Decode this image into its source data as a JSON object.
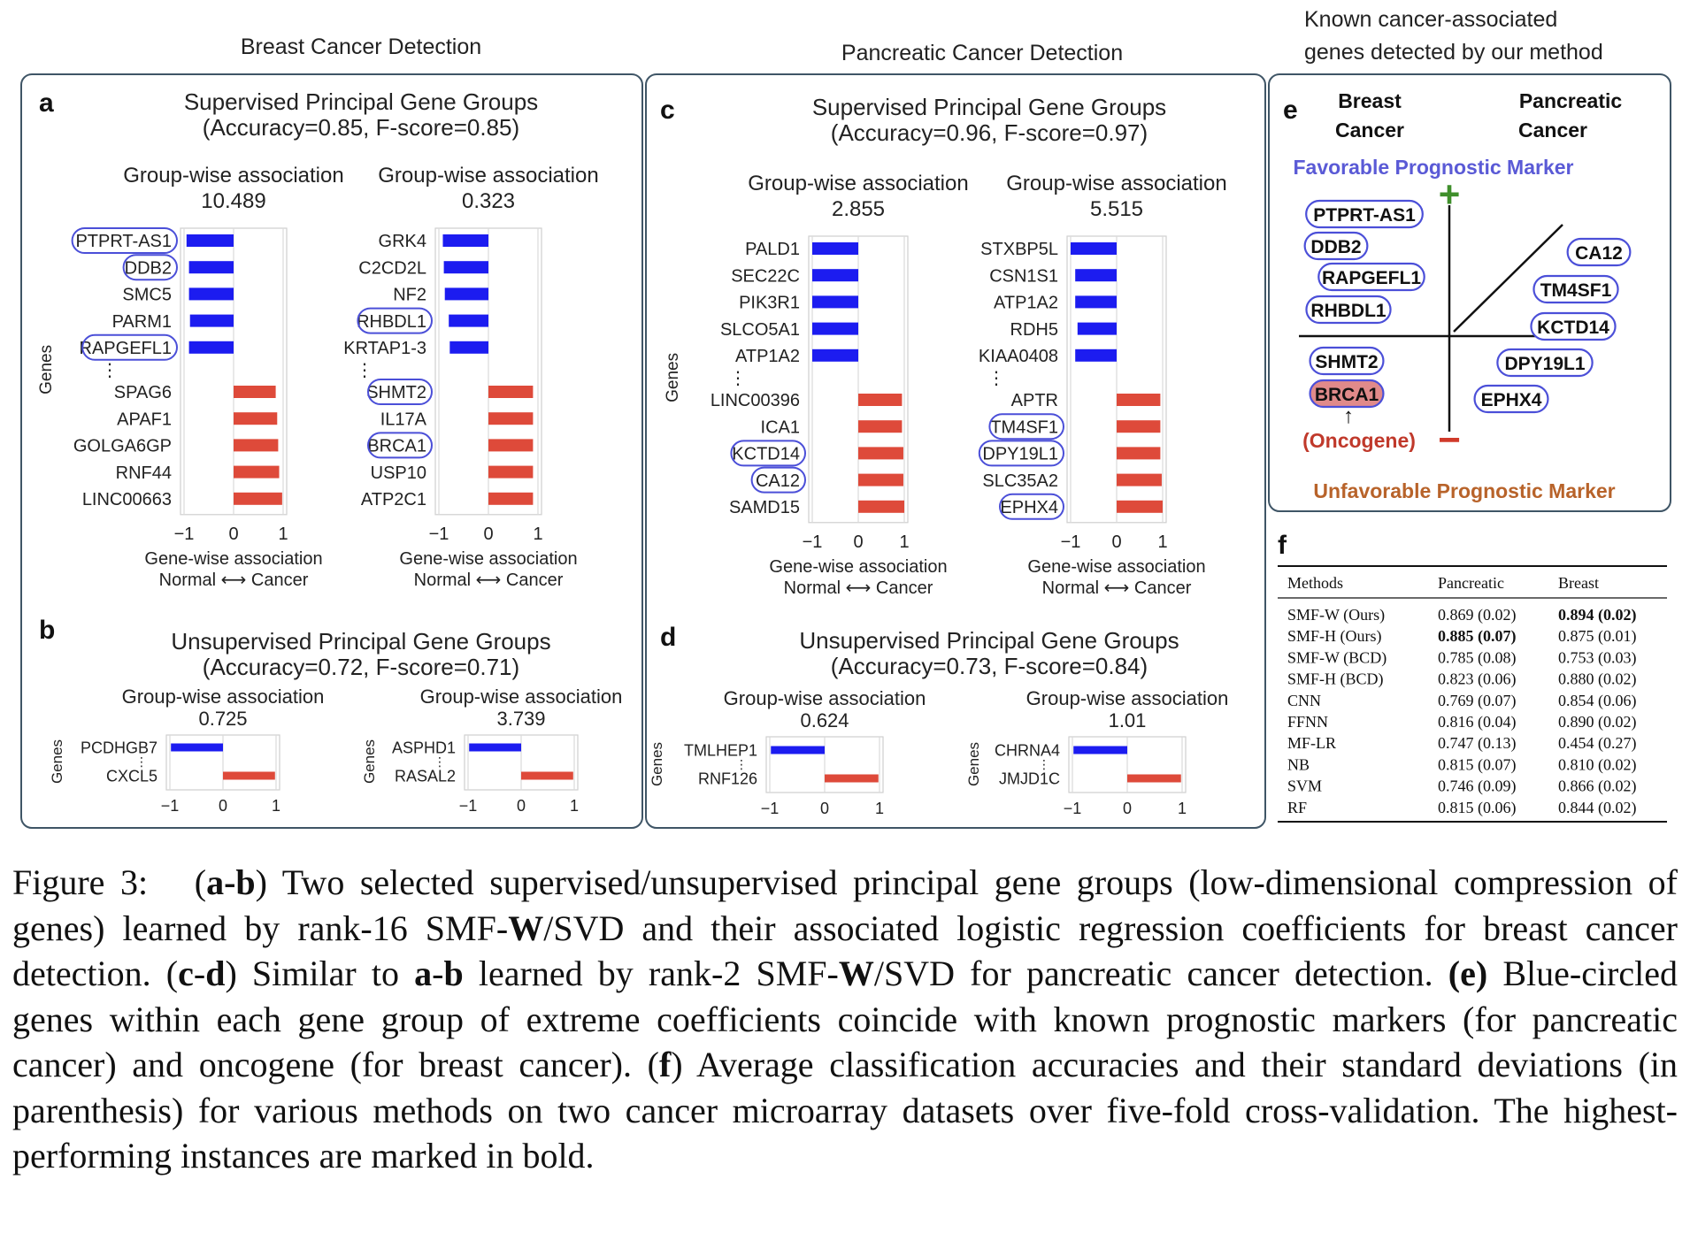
{
  "column_titles": {
    "breast": "Breast Cancer Detection",
    "pancreatic": "Pancreatic Cancer Detection",
    "known": [
      "Known cancer-associated",
      "genes detected by our method"
    ]
  },
  "common": {
    "group_assoc": "Group-wise association",
    "genes_label": "Genes",
    "xlabel_1": "Gene-wise association",
    "xlabel_2": "Normal ⟷ Cancer",
    "ticks": [
      "−1",
      "0",
      "1"
    ],
    "dots": "⋮"
  },
  "panels": {
    "a": {
      "letter": "a",
      "title": [
        "Supervised Principal Gene Groups",
        "(Accuracy=0.85, F-score=0.85)"
      ],
      "groups": [
        {
          "assoc": "10.489",
          "genes": [
            "PTPRT-AS1",
            "DDB2",
            "SMC5",
            "PARM1",
            "RAPGEFL1",
            "SPAG6",
            "APAF1",
            "GOLGA6GP",
            "RNF44",
            "LINC00663"
          ],
          "values": [
            -0.95,
            -0.9,
            -0.9,
            -0.88,
            -0.9,
            0.85,
            0.88,
            0.9,
            0.92,
            0.98
          ],
          "circled": [
            0,
            1,
            4
          ]
        },
        {
          "assoc": "0.323",
          "genes": [
            "GRK4",
            "C2CD2L",
            "NF2",
            "RHBDL1",
            "KRTAP1-3",
            "SHMT2",
            "IL17A",
            "BRCA1",
            "USP10",
            "ATP2C1"
          ],
          "values": [
            -0.92,
            -0.9,
            -0.88,
            -0.8,
            -0.78,
            0.9,
            0.9,
            0.9,
            0.9,
            0.9
          ],
          "circled": [
            3,
            5,
            7
          ]
        }
      ]
    },
    "b": {
      "letter": "b",
      "title": [
        "Unsupervised Principal Gene Groups",
        "(Accuracy=0.72, F-score=0.71)"
      ],
      "groups": [
        {
          "assoc": "0.725",
          "genes": [
            "PCDHGB7",
            "CXCL5"
          ],
          "values": [
            -0.98,
            0.98
          ]
        },
        {
          "assoc": "3.739",
          "genes": [
            "ASPHD1",
            "RASAL2"
          ],
          "values": [
            -0.98,
            0.98
          ]
        }
      ]
    },
    "c": {
      "letter": "c",
      "title": [
        "Supervised Principal Gene Groups",
        "(Accuracy=0.96, F-score=0.97)"
      ],
      "groups": [
        {
          "assoc": "2.855",
          "genes": [
            "PALD1",
            "SEC22C",
            "PIK3R1",
            "SLCO5A1",
            "ATP1A2",
            "LINC00396",
            "ICA1",
            "KCTD14",
            "CA12",
            "SAMD15"
          ],
          "values": [
            -1,
            -1,
            -1,
            -1,
            -1,
            0.95,
            0.95,
            0.98,
            0.98,
            1
          ],
          "circled": [
            7,
            8
          ]
        },
        {
          "assoc": "5.515",
          "genes": [
            "STXBP5L",
            "CSN1S1",
            "ATP1A2",
            "RDH5",
            "KIAA0408",
            "APTR",
            "TM4SF1",
            "DPY19L1",
            "SLC35A2",
            "EPHX4"
          ],
          "values": [
            -1,
            -0.9,
            -0.9,
            -0.85,
            -0.9,
            0.95,
            0.95,
            0.95,
            0.98,
            1
          ],
          "circled": [
            6,
            7,
            9
          ]
        }
      ]
    },
    "d": {
      "letter": "d",
      "title": [
        "Unsupervised Principal Gene Groups",
        "(Accuracy=0.73, F-score=0.84)"
      ],
      "groups": [
        {
          "assoc": "0.624",
          "genes": [
            "TMLHEP1",
            "RNF126"
          ],
          "values": [
            -0.98,
            0.98
          ]
        },
        {
          "assoc": "1.01",
          "genes": [
            "CHRNA4",
            "JMJD1C"
          ],
          "values": [
            -0.98,
            0.98
          ]
        }
      ]
    },
    "e": {
      "letter": "e",
      "col_breast": [
        "Breast",
        "Cancer"
      ],
      "col_pancreatic": [
        "Pancreatic",
        "Cancer"
      ],
      "favorable": "Favorable Prognostic Marker",
      "unfavorable": "Unfavorable Prognostic Marker",
      "plus": "+",
      "minus": "−",
      "breast_favorable": [
        "PTPRT-AS1",
        "DDB2",
        "RAPGEFL1",
        "RHBDL1"
      ],
      "breast_unfavorable": [
        "SHMT2",
        "BRCA1"
      ],
      "pancreatic_genes": [
        "CA12",
        "TM4SF1",
        "KCTD14",
        "DPY19L1",
        "EPHX4"
      ],
      "oncogene_arrow": "↑",
      "oncogene": "(Oncogene)",
      "colors": {
        "favorable": "#5a5ad6",
        "unfavorable": "#b8632a",
        "plus": "#3f8f2b",
        "minus": "#d03a2a",
        "oncogene_fill": "#e08a8a",
        "oncogene_text": "#c0392b",
        "circle": "#4b4fd8"
      }
    },
    "f": {
      "letter": "f",
      "headers": [
        "Methods",
        "Pancreatic",
        "Breast"
      ],
      "rows": [
        {
          "method": "SMF-W (Ours)",
          "pancreatic": "0.869 (0.02)",
          "breast": "0.894 (0.02)",
          "bold_breast": true
        },
        {
          "method": "SMF-H (Ours)",
          "pancreatic": "0.885 (0.07)",
          "breast": "0.875 (0.01)",
          "bold_pancreatic": true
        },
        {
          "method": "SMF-W (BCD)",
          "pancreatic": "0.785 (0.08)",
          "breast": "0.753 (0.03)"
        },
        {
          "method": "SMF-H (BCD)",
          "pancreatic": "0.823 (0.06)",
          "breast": "0.880 (0.02)"
        },
        {
          "method": "CNN",
          "pancreatic": "0.769 (0.07)",
          "breast": "0.854 (0.06)"
        },
        {
          "method": "FFNN",
          "pancreatic": "0.816 (0.04)",
          "breast": "0.890 (0.02)"
        },
        {
          "method": "MF-LR",
          "pancreatic": "0.747 (0.13)",
          "breast": "0.454 (0.27)"
        },
        {
          "method": "NB",
          "pancreatic": "0.815 (0.07)",
          "breast": "0.810 (0.02)"
        },
        {
          "method": "SVM",
          "pancreatic": "0.746 (0.09)",
          "breast": "0.866 (0.02)"
        },
        {
          "method": "RF",
          "pancreatic": "0.815 (0.06)",
          "breast": "0.844 (0.02)"
        }
      ]
    }
  },
  "colors": {
    "negative": "#1c1cf0",
    "positive": "#de4a3a",
    "frame": "#3f5566"
  },
  "caption": {
    "fig_label": "Figure 3:",
    "p_ab_1": "(",
    "p_ab_b": "a-b",
    "p_ab_2": ") Two selected supervised/unsupervised principal gene groups (low-dimensional compression of genes) learned by rank-16 SMF-",
    "p_W1": "W",
    "p_ab_3": "/SVD and their associated logistic regression coefficients for breast cancer detection. (",
    "p_cd_b": "c",
    "p_cd_dash": "-",
    "p_cd_b2": "d",
    "p_cd_1": ") Similar to ",
    "p_cd_a": "a",
    "p_cd_dash2": "-",
    "p_cd_bb": "b",
    "p_cd_2": " learned by rank-2 SMF-",
    "p_W2": "W",
    "p_cd_3": "/SVD for pancreatic cancer detection. ",
    "p_e_b": "(e)",
    "p_e_1": " Blue-circled genes within each gene group of extreme coefficients coincide with known prognostic markers (for pancreatic cancer) and oncogene (for breast cancer). (",
    "p_f_b": "f",
    "p_f_1": ") Average classification accuracies and their standard deviations (in parenthesis) for various methods on two cancer microarray datasets over five-fold cross-validation. The highest-performing instances are marked in bold."
  }
}
